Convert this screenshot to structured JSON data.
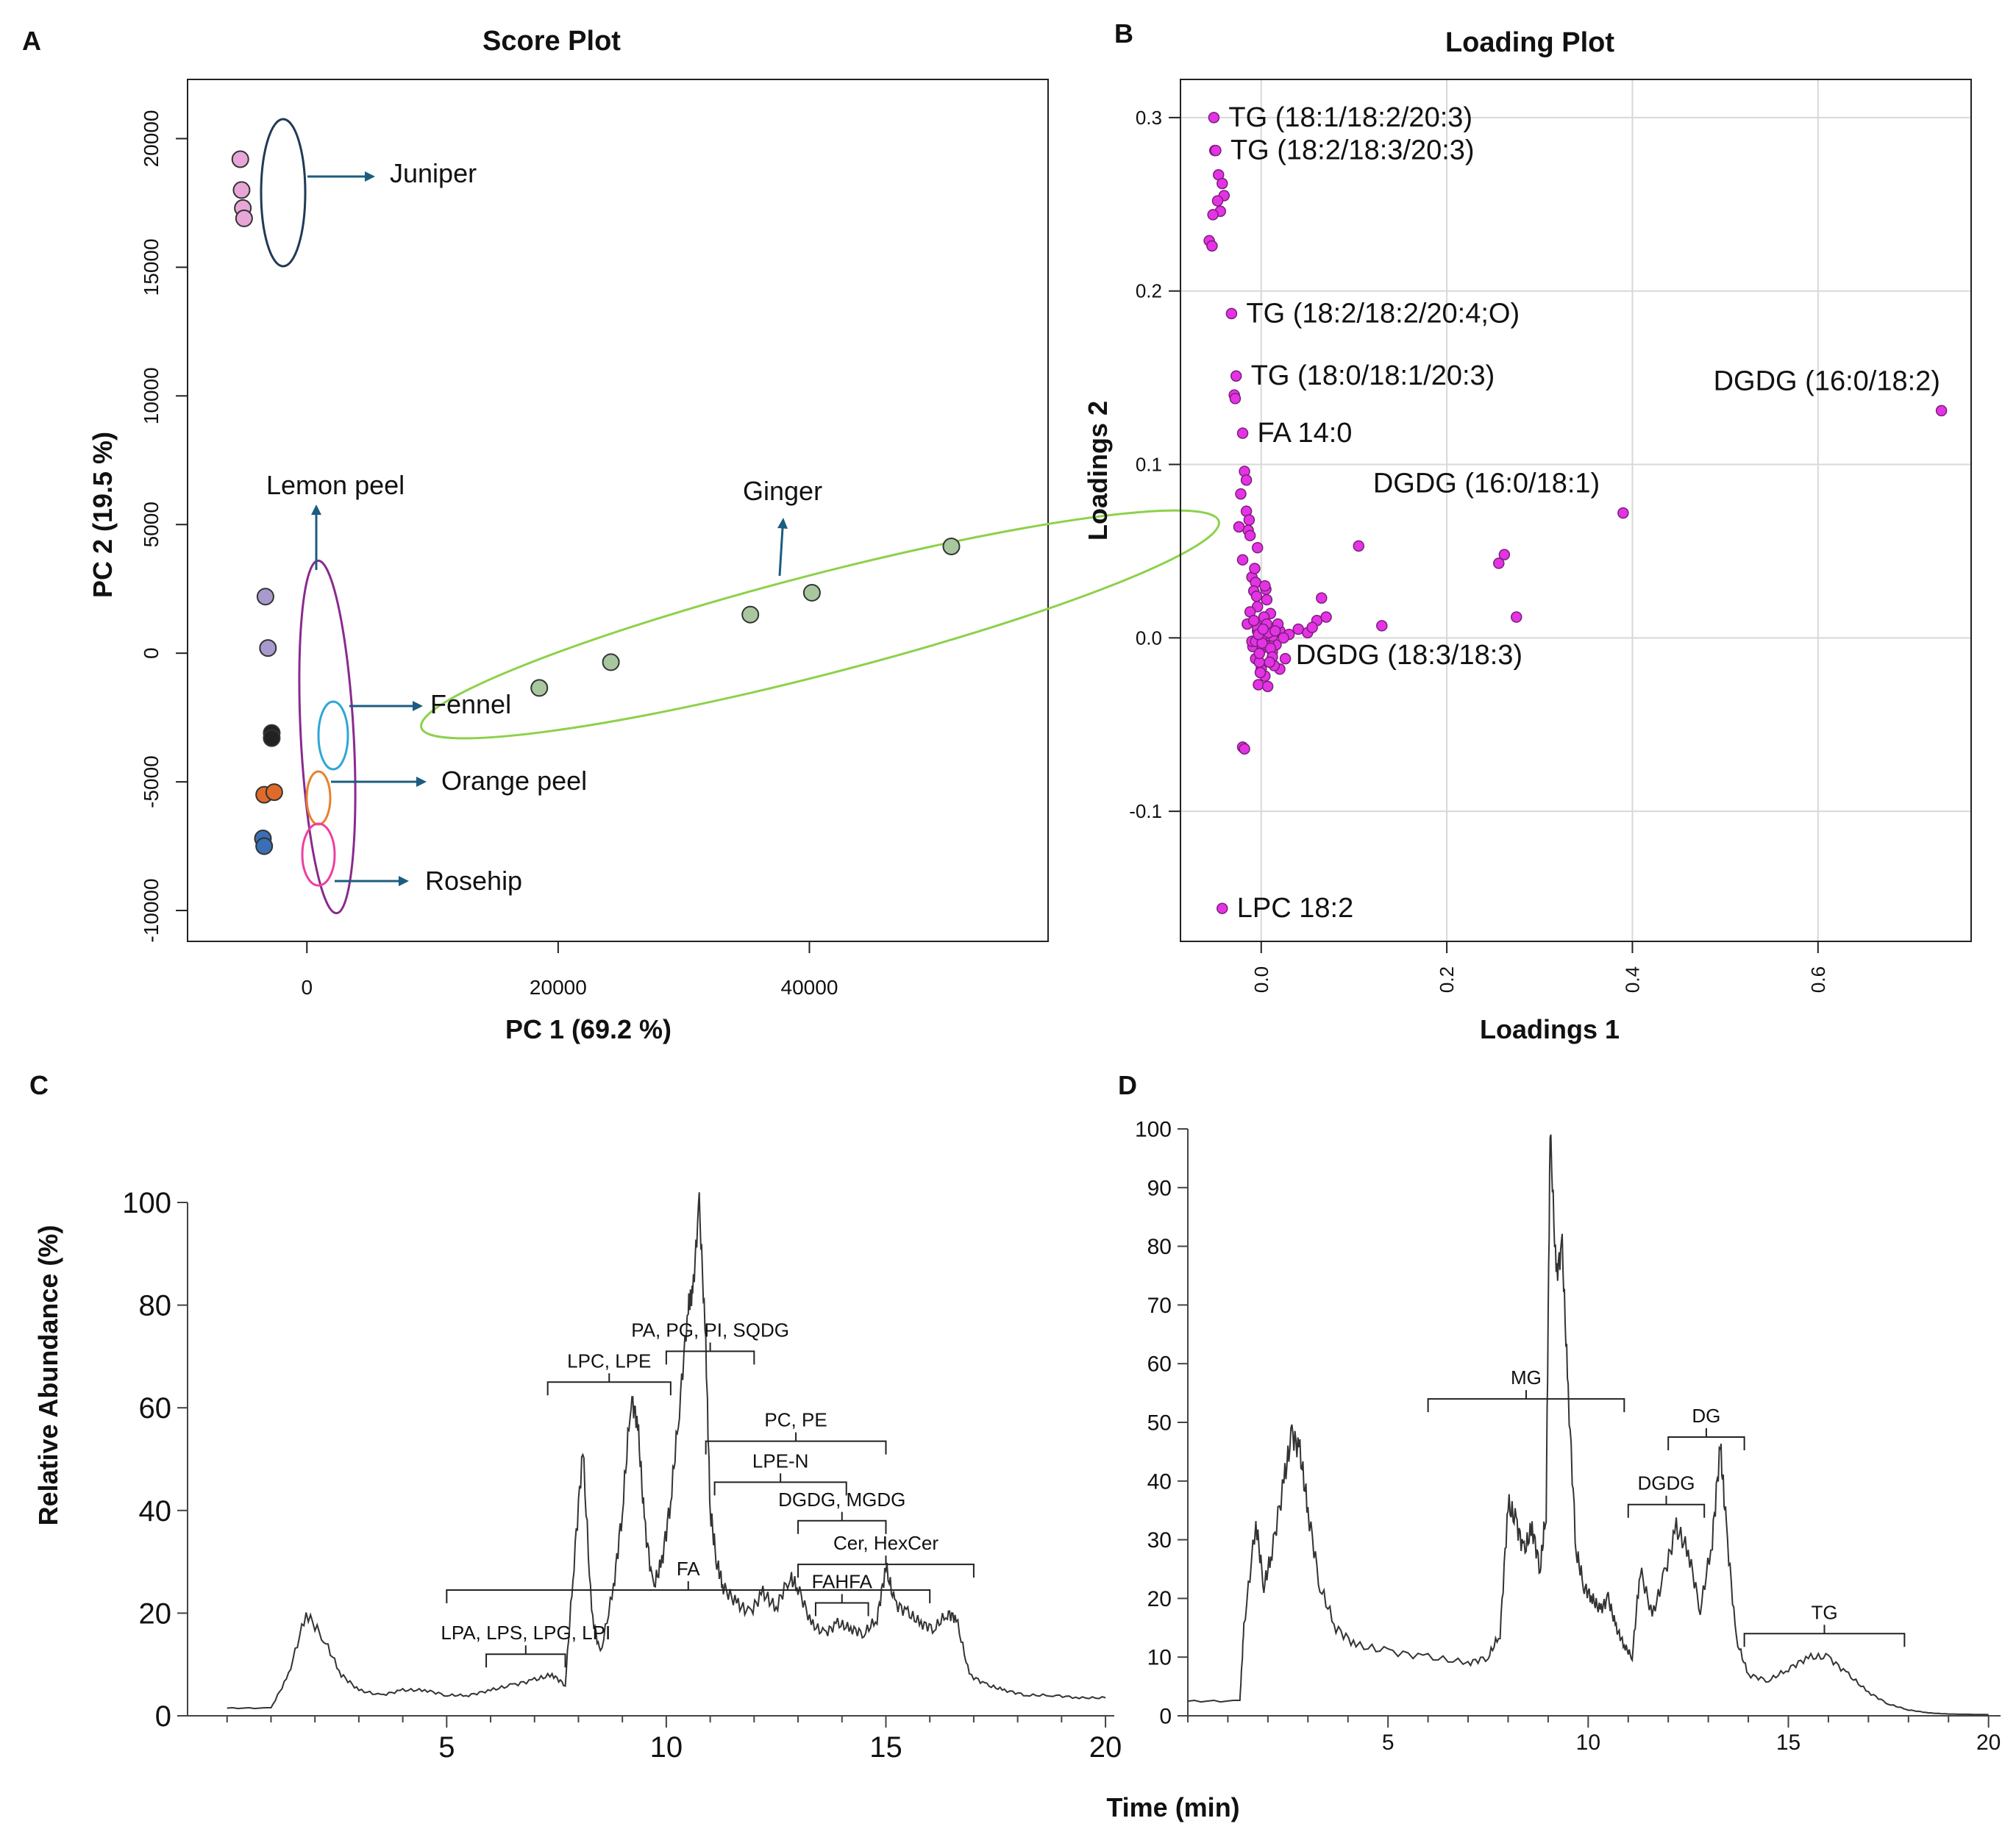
{
  "panels": {
    "a": "A",
    "b": "B",
    "c": "C",
    "d": "D"
  },
  "chart_data": [
    {
      "id": "A",
      "type": "scatter",
      "title": "Score Plot",
      "xlabel": "PC 1 (69.2 %)",
      "ylabel": "PC 2 (19.5 %)",
      "xlim": [
        -9500,
        59000
      ],
      "ylim": [
        -11200,
        22300
      ],
      "grid": false,
      "xticks": [
        0,
        20000,
        40000
      ],
      "yticks": [
        -10000,
        -5000,
        0,
        5000,
        10000,
        15000,
        20000
      ],
      "groups": [
        {
          "name": "Juniper",
          "color": "#e8a6d8",
          "ellipse_color": "#1f3a57",
          "points": [
            [
              -5300,
              19200
            ],
            [
              -5200,
              18000
            ],
            [
              -5100,
              17300
            ],
            [
              -5000,
              16900
            ]
          ]
        },
        {
          "name": "Lemon peel",
          "color": "#a999cc",
          "ellipse_color": "#8a2a8e",
          "points": [
            [
              -3300,
              2200
            ],
            [
              -3100,
              200
            ]
          ]
        },
        {
          "name": "Fennel",
          "color": "#222222",
          "ellipse_color": "#2fa6d8",
          "points": [
            [
              -2800,
              -3100
            ],
            [
              -2800,
              -3300
            ]
          ]
        },
        {
          "name": "Orange peel",
          "color": "#e06a2a",
          "ellipse_color": "#e6822e",
          "points": [
            [
              -3400,
              -5500
            ],
            [
              -2600,
              -5400
            ]
          ]
        },
        {
          "name": "Rosehip",
          "color": "#3a6fb5",
          "ellipse_color": "#ee3fa0",
          "points": [
            [
              -3500,
              -7200
            ],
            [
              -3400,
              -7500
            ]
          ]
        },
        {
          "name": "Ginger",
          "color": "#a9c79f",
          "ellipse_color": "#8cd14a",
          "points": [
            [
              18500,
              -1350
            ],
            [
              24200,
              -350
            ],
            [
              35300,
              1500
            ],
            [
              40200,
              2350
            ],
            [
              51300,
              4150
            ]
          ]
        }
      ],
      "annotations": [
        {
          "label": "Juniper",
          "color": "#1c5c80"
        },
        {
          "label": "Lemon peel",
          "color": "#1c5c80"
        },
        {
          "label": "Ginger",
          "color": "#1c5c80"
        },
        {
          "label": "Fennel",
          "color": "#1c5c80"
        },
        {
          "label": "Orange peel",
          "color": "#1c5c80"
        },
        {
          "label": "Rosehip",
          "color": "#1c5c80"
        }
      ]
    },
    {
      "id": "B",
      "type": "scatter",
      "title": "Loading Plot",
      "xlabel": "Loadings 1",
      "ylabel": "Loadings 2",
      "xlim": [
        -0.087,
        0.765
      ],
      "ylim": [
        -0.175,
        0.322
      ],
      "grid": true,
      "color": "#e433e4",
      "xticks": [
        0.0,
        0.2,
        0.4,
        0.6
      ],
      "xtick_labels": [
        "0.0",
        "0.2",
        "0.4",
        "0.6"
      ],
      "yticks": [
        -0.1,
        0.0,
        0.1,
        0.2,
        0.3
      ],
      "ytick_labels": [
        "-0.1",
        "0.0",
        "0.1",
        "0.2",
        "0.3"
      ],
      "labeled_points": [
        {
          "label": "TG (18:1/18:2/20:3)",
          "x": -0.051,
          "y": 0.3
        },
        {
          "label": "TG (18:2/18:3/20:3)",
          "x": -0.049,
          "y": 0.281
        },
        {
          "label": "TG (18:2/18:2/20:4;O)",
          "x": -0.032,
          "y": 0.187
        },
        {
          "label": "TG (18:0/18:1/20:3)",
          "x": -0.027,
          "y": 0.151
        },
        {
          "label": "FA 14:0",
          "x": -0.02,
          "y": 0.118
        },
        {
          "label": "DGDG (16:0/18:2)",
          "x": 0.733,
          "y": 0.131
        },
        {
          "label": "DGDG (16:0/18:1)",
          "x": 0.39,
          "y": 0.072
        },
        {
          "label": "DGDG (18:3/18:3)",
          "x": 0.275,
          "y": 0.012
        },
        {
          "label": "LPC 18:2",
          "x": -0.042,
          "y": -0.156
        }
      ],
      "points": [
        [
          -0.05,
          0.281
        ],
        [
          -0.046,
          0.267
        ],
        [
          -0.042,
          0.262
        ],
        [
          -0.04,
          0.255
        ],
        [
          -0.047,
          0.252
        ],
        [
          -0.044,
          0.246
        ],
        [
          -0.052,
          0.244
        ],
        [
          -0.056,
          0.229
        ],
        [
          -0.053,
          0.226
        ],
        [
          -0.029,
          0.14
        ],
        [
          -0.028,
          0.138
        ],
        [
          -0.018,
          0.096
        ],
        [
          -0.016,
          0.091
        ],
        [
          -0.022,
          0.083
        ],
        [
          -0.016,
          0.073
        ],
        [
          -0.013,
          0.068
        ],
        [
          -0.014,
          0.062
        ],
        [
          -0.012,
          0.059
        ],
        [
          -0.024,
          0.064
        ],
        [
          -0.02,
          0.045
        ],
        [
          -0.01,
          0.035
        ],
        [
          -0.006,
          0.032
        ],
        [
          0.005,
          0.028
        ],
        [
          -0.008,
          0.027
        ],
        [
          0.006,
          0.022
        ],
        [
          -0.004,
          0.018
        ],
        [
          -0.012,
          0.015
        ],
        [
          0.01,
          0.014
        ],
        [
          -0.015,
          0.008
        ],
        [
          0.02,
          0.004
        ],
        [
          0.03,
          0.002
        ],
        [
          0.04,
          0.005
        ],
        [
          0.05,
          0.003
        ],
        [
          0.06,
          0.01
        ],
        [
          0.055,
          0.006
        ],
        [
          0.065,
          0.023
        ],
        [
          0.07,
          0.012
        ],
        [
          0.105,
          0.053
        ],
        [
          0.13,
          0.007
        ],
        [
          0.256,
          0.043
        ],
        [
          0.262,
          0.048
        ],
        [
          -0.009,
          -0.005
        ],
        [
          -0.006,
          -0.012
        ],
        [
          0.0,
          -0.018
        ],
        [
          0.004,
          -0.022
        ],
        [
          -0.003,
          -0.027
        ],
        [
          0.007,
          -0.028
        ],
        [
          0.02,
          -0.018
        ],
        [
          0.026,
          -0.012
        ],
        [
          0.012,
          -0.008
        ],
        [
          -0.02,
          -0.063
        ],
        [
          -0.018,
          -0.064
        ],
        [
          0.016,
          -0.004
        ],
        [
          -0.01,
          -0.002
        ],
        [
          0.001,
          -0.006
        ],
        [
          0.005,
          0.002
        ],
        [
          0.008,
          -0.002
        ],
        [
          -0.004,
          0.004
        ],
        [
          0.002,
          0.01
        ],
        [
          0.012,
          0.001
        ],
        [
          0.018,
          0.008
        ],
        [
          0.024,
          0.0
        ],
        [
          -0.002,
          -0.014
        ],
        [
          0.014,
          -0.016
        ],
        [
          0.003,
          -0.001
        ],
        [
          0.0,
          0.001
        ],
        [
          0.006,
          0.006
        ]
      ]
    },
    {
      "id": "C",
      "type": "line",
      "xlabel": "",
      "ylabel": "Relative Abundance (%)",
      "xlim": [
        -0.9,
        20.2
      ],
      "ylim": [
        0,
        100
      ],
      "xticks": [
        5,
        10,
        15,
        20
      ],
      "yticks": [
        0,
        20,
        40,
        60,
        80,
        100
      ],
      "x": [
        0.0,
        1.0,
        1.4,
        1.8,
        2.2,
        2.6,
        3.0,
        3.5,
        4.0,
        4.5,
        5.0,
        5.5,
        6.0,
        6.5,
        7.0,
        7.4,
        7.7,
        7.9,
        8.1,
        8.3,
        8.5,
        8.8,
        9.0,
        9.2,
        9.35,
        9.5,
        9.7,
        9.9,
        10.1,
        10.3,
        10.5,
        10.6,
        10.75,
        10.9,
        11.0,
        11.15,
        11.3,
        11.6,
        11.9,
        12.2,
        12.5,
        12.8,
        13.0,
        13.3,
        13.6,
        13.9,
        14.2,
        14.5,
        14.8,
        15.0,
        15.2,
        15.5,
        15.8,
        16.1,
        16.4,
        16.6,
        16.9,
        17.3,
        17.7,
        18.2,
        18.8,
        19.4,
        20.0
      ],
      "y": [
        1.5,
        1.5,
        8,
        20,
        15,
        8,
        5,
        4,
        5,
        5,
        4,
        4,
        5,
        6,
        7,
        8,
        6,
        30,
        52,
        20,
        12,
        25,
        40,
        62,
        57,
        38,
        25,
        30,
        42,
        60,
        80,
        82,
        100,
        72,
        40,
        30,
        25,
        22,
        20,
        24,
        21,
        27,
        25,
        18,
        16,
        18,
        17,
        16,
        19,
        29,
        22,
        20,
        18,
        17,
        20,
        19,
        8,
        6,
        5,
        4,
        4,
        3.5,
        3.5
      ],
      "brackets": [
        {
          "label": "LPA, LPS, LPG, LPI",
          "x1": 5.9,
          "x2": 7.7,
          "y": 12
        },
        {
          "label": "FA",
          "x1": 5.0,
          "x2": 16.0,
          "y": 24.5
        },
        {
          "label": "LPC, LPE",
          "x1": 7.3,
          "x2": 10.1,
          "y": 65
        },
        {
          "label": "PA, PG, PI, SQDG",
          "x1": 10.0,
          "x2": 12.0,
          "y": 71
        },
        {
          "label": "PC, PE",
          "x1": 10.9,
          "x2": 15.0,
          "y": 53.5
        },
        {
          "label": "LPE-N",
          "x1": 11.1,
          "x2": 14.1,
          "y": 45.5
        },
        {
          "label": "DGDG, MGDG",
          "x1": 13.0,
          "x2": 15.0,
          "y": 38
        },
        {
          "label": "FAHFA",
          "x1": 13.4,
          "x2": 14.6,
          "y": 22
        },
        {
          "label": "Cer, HexCer",
          "x1": 13.0,
          "x2": 17.0,
          "y": 29.5
        }
      ]
    },
    {
      "id": "D",
      "type": "line",
      "xlabel": "Time (min)",
      "ylabel": "",
      "xlim": [
        0,
        20.3
      ],
      "ylim": [
        0,
        100
      ],
      "xticks": [
        5,
        10,
        15,
        20
      ],
      "yticks": [
        0,
        10,
        20,
        30,
        40,
        50,
        60,
        70,
        80,
        90,
        100
      ],
      "x": [
        0.0,
        1.3,
        1.4,
        1.7,
        1.9,
        2.1,
        2.4,
        2.6,
        2.8,
        3.0,
        3.3,
        3.7,
        4.2,
        5.0,
        6.0,
        7.0,
        7.5,
        7.8,
        8.0,
        8.2,
        8.4,
        8.6,
        8.8,
        8.95,
        9.05,
        9.2,
        9.35,
        9.5,
        9.7,
        9.9,
        10.1,
        10.3,
        10.5,
        10.7,
        10.9,
        11.1,
        11.3,
        11.6,
        11.9,
        12.2,
        12.5,
        12.8,
        13.1,
        13.3,
        13.45,
        13.7,
        14.0,
        14.5,
        15.0,
        15.5,
        16.0,
        16.5,
        17.0,
        17.5,
        18.0,
        18.5,
        19.0,
        20.0
      ],
      "y": [
        2.5,
        2.5,
        15,
        33,
        22,
        28,
        40,
        48,
        45,
        35,
        22,
        15,
        12,
        11,
        10,
        9,
        10,
        14,
        36,
        33,
        28,
        32,
        25,
        35,
        100,
        75,
        80,
        55,
        28,
        22,
        20,
        18,
        20,
        15,
        12,
        10,
        25,
        17,
        24,
        32,
        28,
        18,
        30,
        46,
        32,
        13,
        7,
        6,
        8,
        10,
        10,
        7,
        4,
        2,
        1,
        0.5,
        0.3,
        0.2
      ],
      "brackets": [
        {
          "label": "MG",
          "x1": 6.0,
          "x2": 10.9,
          "y": 54
        },
        {
          "label": "DG",
          "x1": 12.0,
          "x2": 13.9,
          "y": 47.5
        },
        {
          "label": "DGDG",
          "x1": 11.0,
          "x2": 12.9,
          "y": 36
        },
        {
          "label": "TG",
          "x1": 13.9,
          "x2": 17.9,
          "y": 14
        }
      ]
    }
  ]
}
